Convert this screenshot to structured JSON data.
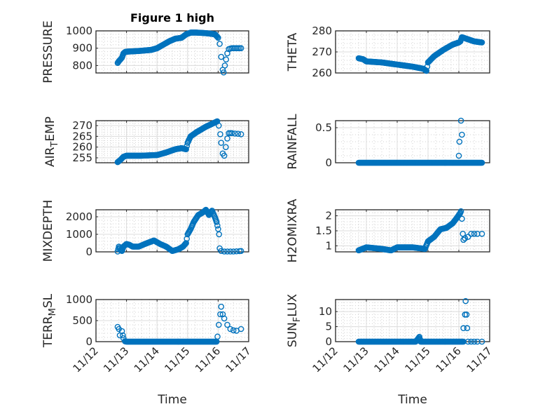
{
  "figure": {
    "title": "Figure 1 high"
  },
  "chart_data": [
    {
      "type": "scatter",
      "id": "pressure",
      "ylabel": "PRESSURE",
      "xlabel": "",
      "ylim": [
        757,
        1000
      ],
      "yticks": [
        800,
        900,
        1000
      ],
      "xlim": [
        0,
        5
      ],
      "xtick_labels": [
        "11/12",
        "11/13",
        "11/14",
        "11/15",
        "11/16",
        "11/17"
      ],
      "x_units": "days since 11/12",
      "points": [
        [
          0.71,
          815
        ],
        [
          0.75,
          825
        ],
        [
          0.8,
          835
        ],
        [
          0.85,
          845
        ],
        [
          0.9,
          870
        ],
        [
          0.95,
          878
        ],
        [
          1.0,
          880
        ],
        [
          1.2,
          882
        ],
        [
          1.4,
          884
        ],
        [
          1.6,
          887
        ],
        [
          1.8,
          890
        ],
        [
          2.0,
          900
        ],
        [
          2.2,
          920
        ],
        [
          2.4,
          940
        ],
        [
          2.6,
          955
        ],
        [
          2.8,
          960
        ],
        [
          2.95,
          980
        ],
        [
          3.1,
          990
        ],
        [
          3.3,
          990
        ],
        [
          3.5,
          988
        ],
        [
          3.7,
          985
        ],
        [
          3.9,
          980
        ],
        [
          3.95,
          970
        ],
        [
          4.0,
          960
        ]
      ],
      "outliers": [
        [
          4.05,
          925
        ],
        [
          4.1,
          850
        ],
        [
          4.15,
          775
        ],
        [
          4.18,
          760
        ],
        [
          4.22,
          800
        ],
        [
          4.26,
          835
        ],
        [
          4.3,
          870
        ],
        [
          4.35,
          895
        ],
        [
          4.45,
          900
        ],
        [
          4.55,
          900
        ],
        [
          4.65,
          900
        ],
        [
          4.75,
          900
        ],
        [
          4.4,
          898
        ],
        [
          4.5,
          900
        ],
        [
          4.6,
          900
        ],
        [
          4.7,
          900
        ]
      ]
    },
    {
      "type": "scatter",
      "id": "theta",
      "ylabel": "THETA",
      "ylim": [
        260,
        280
      ],
      "yticks": [
        260,
        270,
        280
      ],
      "xlim": [
        0,
        5
      ],
      "points": [
        [
          0.75,
          267
        ],
        [
          0.9,
          266.5
        ],
        [
          1.0,
          265.5
        ],
        [
          1.5,
          265
        ],
        [
          2.0,
          264
        ],
        [
          2.5,
          263
        ],
        [
          2.85,
          262
        ],
        [
          2.95,
          261
        ],
        [
          3.0,
          265
        ],
        [
          3.2,
          268
        ],
        [
          3.5,
          271
        ],
        [
          3.8,
          273.5
        ],
        [
          4.0,
          274.5
        ],
        [
          4.05,
          275
        ],
        [
          4.1,
          277
        ],
        [
          4.3,
          276
        ],
        [
          4.5,
          275
        ],
        [
          4.75,
          274.5
        ]
      ],
      "outliers": []
    },
    {
      "type": "scatter",
      "id": "air-temp",
      "ylabel": "AIR_TEMP",
      "ylim": [
        252.7,
        272.3
      ],
      "yticks": [
        255,
        260,
        265,
        270
      ],
      "xlim": [
        0,
        5
      ],
      "points": [
        [
          0.71,
          253
        ],
        [
          0.8,
          254
        ],
        [
          0.9,
          255.5
        ],
        [
          1.0,
          256
        ],
        [
          1.5,
          256
        ],
        [
          2.0,
          256.3
        ],
        [
          2.3,
          257.5
        ],
        [
          2.6,
          259
        ],
        [
          2.8,
          259.5
        ],
        [
          2.95,
          259
        ],
        [
          3.0,
          262
        ],
        [
          3.1,
          265
        ],
        [
          3.3,
          267
        ],
        [
          3.6,
          269.5
        ],
        [
          3.9,
          271.5
        ],
        [
          3.97,
          272
        ]
      ],
      "outliers": [
        [
          4.02,
          270
        ],
        [
          4.07,
          266
        ],
        [
          4.1,
          262
        ],
        [
          4.15,
          257
        ],
        [
          4.2,
          256
        ],
        [
          4.25,
          260
        ],
        [
          4.3,
          264
        ],
        [
          4.35,
          266.5
        ],
        [
          4.4,
          266.5
        ],
        [
          4.45,
          266.5
        ],
        [
          4.55,
          266.3
        ],
        [
          4.65,
          266.2
        ],
        [
          4.75,
          266
        ]
      ]
    },
    {
      "type": "scatter",
      "id": "rainfall",
      "ylabel": "RAINFALL",
      "ylim": [
        0,
        0.6
      ],
      "yticks": [
        0,
        0.5
      ],
      "xlim": [
        0,
        5
      ],
      "points": [
        [
          0.75,
          0
        ],
        [
          4.75,
          0
        ]
      ],
      "outliers": [
        [
          4.0,
          0.1
        ],
        [
          4.02,
          0.3
        ],
        [
          4.07,
          0.6
        ],
        [
          4.1,
          0.4
        ]
      ]
    },
    {
      "type": "scatter",
      "id": "mixdepth",
      "ylabel": "MIXDEPTH",
      "ylim": [
        0,
        2400
      ],
      "yticks": [
        0,
        1000,
        2000
      ],
      "xlim": [
        0,
        5
      ],
      "points": [
        [
          0.71,
          20
        ],
        [
          0.75,
          300
        ],
        [
          0.8,
          100
        ],
        [
          0.85,
          50
        ],
        [
          0.9,
          300
        ],
        [
          1.0,
          450
        ],
        [
          1.1,
          400
        ],
        [
          1.2,
          300
        ],
        [
          1.4,
          300
        ],
        [
          1.6,
          450
        ],
        [
          1.9,
          650
        ],
        [
          2.1,
          450
        ],
        [
          2.3,
          300
        ],
        [
          2.5,
          50
        ],
        [
          2.7,
          150
        ],
        [
          2.85,
          300
        ],
        [
          2.95,
          500
        ],
        [
          3.0,
          1000
        ],
        [
          3.1,
          1300
        ],
        [
          3.2,
          1700
        ],
        [
          3.35,
          2100
        ],
        [
          3.5,
          2250
        ],
        [
          3.6,
          2400
        ],
        [
          3.7,
          2100
        ],
        [
          3.8,
          2350
        ],
        [
          3.9,
          1950
        ],
        [
          3.95,
          1700
        ],
        [
          4.0,
          1300
        ]
      ],
      "outliers": [
        [
          4.03,
          1000
        ],
        [
          4.05,
          200
        ],
        [
          4.1,
          50
        ],
        [
          4.2,
          20
        ],
        [
          4.3,
          20
        ],
        [
          4.4,
          20
        ],
        [
          4.5,
          20
        ],
        [
          4.6,
          30
        ],
        [
          4.7,
          40
        ],
        [
          4.75,
          50
        ]
      ]
    },
    {
      "type": "scatter",
      "id": "h2omixra",
      "ylabel": "H2OMIXRA",
      "ylim": [
        0.8,
        2.2
      ],
      "yticks": [
        1,
        1.5,
        2
      ],
      "xlim": [
        0,
        5
      ],
      "points": [
        [
          0.75,
          0.85
        ],
        [
          1.0,
          0.95
        ],
        [
          1.5,
          0.9
        ],
        [
          1.8,
          0.85
        ],
        [
          2.0,
          0.95
        ],
        [
          2.5,
          0.95
        ],
        [
          2.9,
          0.9
        ],
        [
          3.0,
          1.15
        ],
        [
          3.2,
          1.3
        ],
        [
          3.4,
          1.55
        ],
        [
          3.6,
          1.6
        ],
        [
          3.8,
          1.75
        ],
        [
          3.95,
          1.95
        ],
        [
          4.05,
          2.1
        ]
      ],
      "outliers": [
        [
          4.07,
          2.15
        ],
        [
          4.1,
          1.9
        ],
        [
          4.13,
          1.4
        ],
        [
          4.15,
          1.2
        ],
        [
          4.2,
          1.25
        ],
        [
          4.3,
          1.3
        ],
        [
          4.4,
          1.4
        ],
        [
          4.5,
          1.4
        ],
        [
          4.6,
          1.4
        ],
        [
          4.75,
          1.4
        ]
      ]
    },
    {
      "type": "scatter",
      "id": "terr-msl",
      "ylabel": "TERR_MSL",
      "ylim": [
        0,
        1000
      ],
      "yticks": [
        0,
        500,
        1000
      ],
      "xlim": [
        0,
        5
      ],
      "points": [
        [
          0.95,
          10
        ],
        [
          1.0,
          0
        ],
        [
          3.95,
          0
        ]
      ],
      "outliers": [
        [
          0.71,
          350
        ],
        [
          0.75,
          300
        ],
        [
          0.78,
          150
        ],
        [
          0.85,
          250
        ],
        [
          0.88,
          150
        ],
        [
          0.9,
          80
        ],
        [
          3.98,
          120
        ],
        [
          4.02,
          400
        ],
        [
          4.07,
          650
        ],
        [
          4.1,
          830
        ],
        [
          4.15,
          650
        ],
        [
          4.2,
          550
        ],
        [
          4.3,
          400
        ],
        [
          4.4,
          300
        ],
        [
          4.5,
          270
        ],
        [
          4.6,
          260
        ],
        [
          4.75,
          300
        ]
      ]
    },
    {
      "type": "scatter",
      "id": "sun-flux",
      "ylabel": "SUN_FLUX",
      "ylim": [
        0,
        14
      ],
      "yticks": [
        0,
        5,
        10
      ],
      "xlim": [
        0,
        5
      ],
      "points": [
        [
          0.75,
          0
        ],
        [
          2.6,
          0
        ],
        [
          2.68,
          1
        ],
        [
          2.72,
          1.6
        ],
        [
          2.76,
          0
        ],
        [
          4.15,
          0
        ]
      ],
      "outliers": [
        [
          4.15,
          4.5
        ],
        [
          4.2,
          9
        ],
        [
          4.22,
          13.5
        ],
        [
          4.25,
          9
        ],
        [
          4.27,
          4.5
        ],
        [
          4.3,
          0
        ],
        [
          4.4,
          0
        ],
        [
          4.5,
          0
        ],
        [
          4.6,
          0
        ],
        [
          4.75,
          0
        ]
      ]
    }
  ],
  "xaxis": {
    "label": "Time",
    "tick_labels": [
      "11/12",
      "11/13",
      "11/14",
      "11/15",
      "11/16",
      "11/17"
    ]
  },
  "colors": {
    "marker": "#0072BD",
    "axis": "#262626",
    "grid": "#dcdcdc"
  }
}
